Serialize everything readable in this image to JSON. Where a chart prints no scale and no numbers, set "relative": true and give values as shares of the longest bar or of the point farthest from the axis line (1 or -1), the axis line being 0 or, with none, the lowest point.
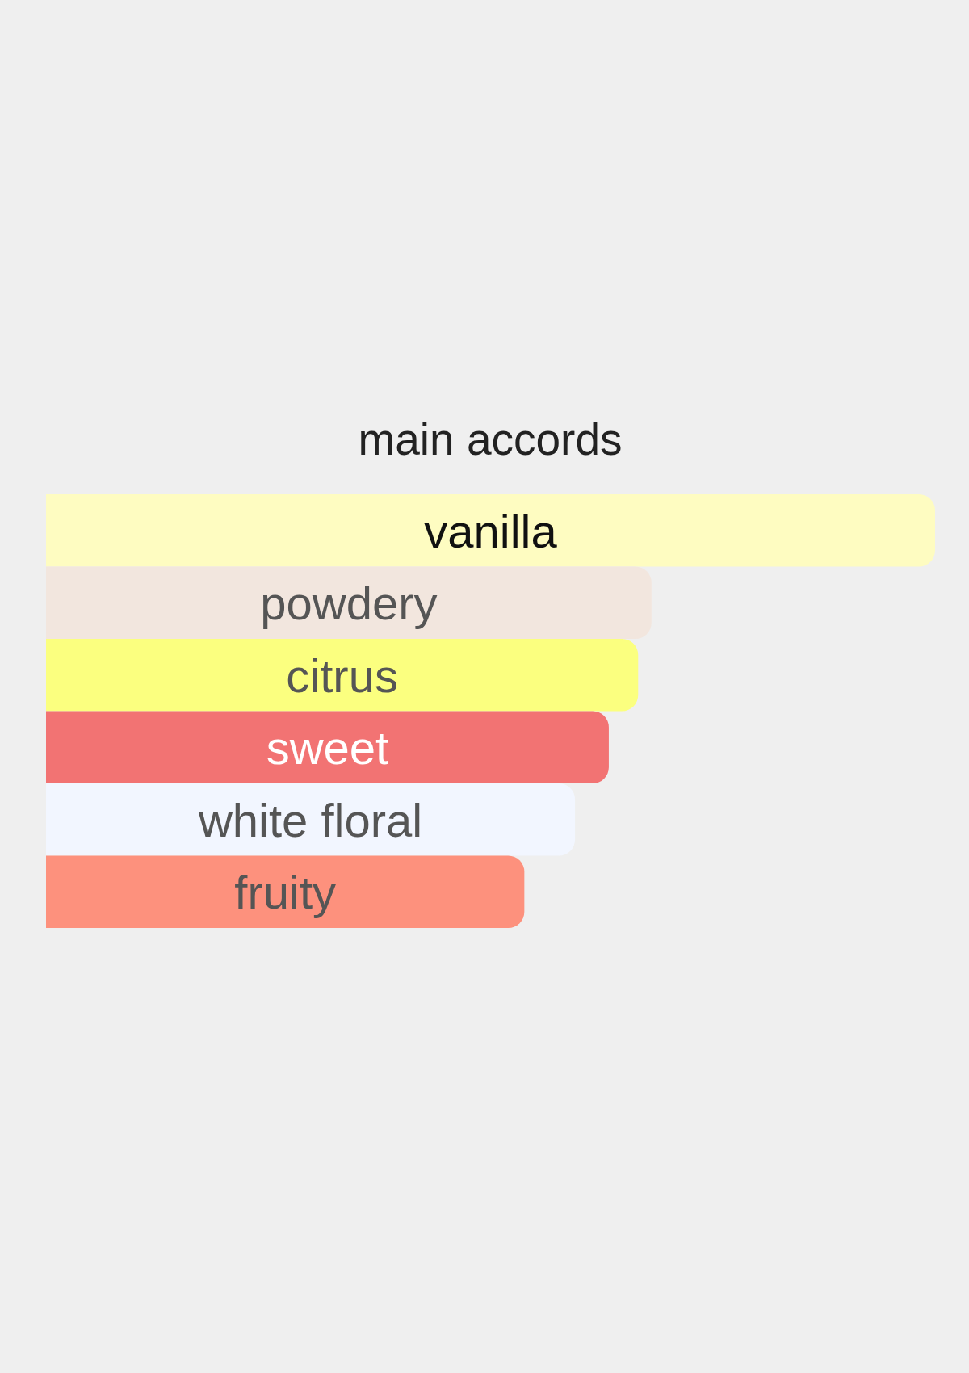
{
  "chart_data": {
    "type": "bar",
    "orientation": "horizontal",
    "relative": true,
    "title": "main accords",
    "categories": [
      "vanilla",
      "powdery",
      "citrus",
      "sweet",
      "white floral",
      "fruity"
    ],
    "values": [
      1,
      0.681,
      0.666,
      0.633,
      0.595,
      0.538
    ],
    "colors": [
      "#fefcc1",
      "#f2e6de",
      "#fbff7f",
      "#f27373",
      "#f2f6ff",
      "#fd917d"
    ]
  }
}
